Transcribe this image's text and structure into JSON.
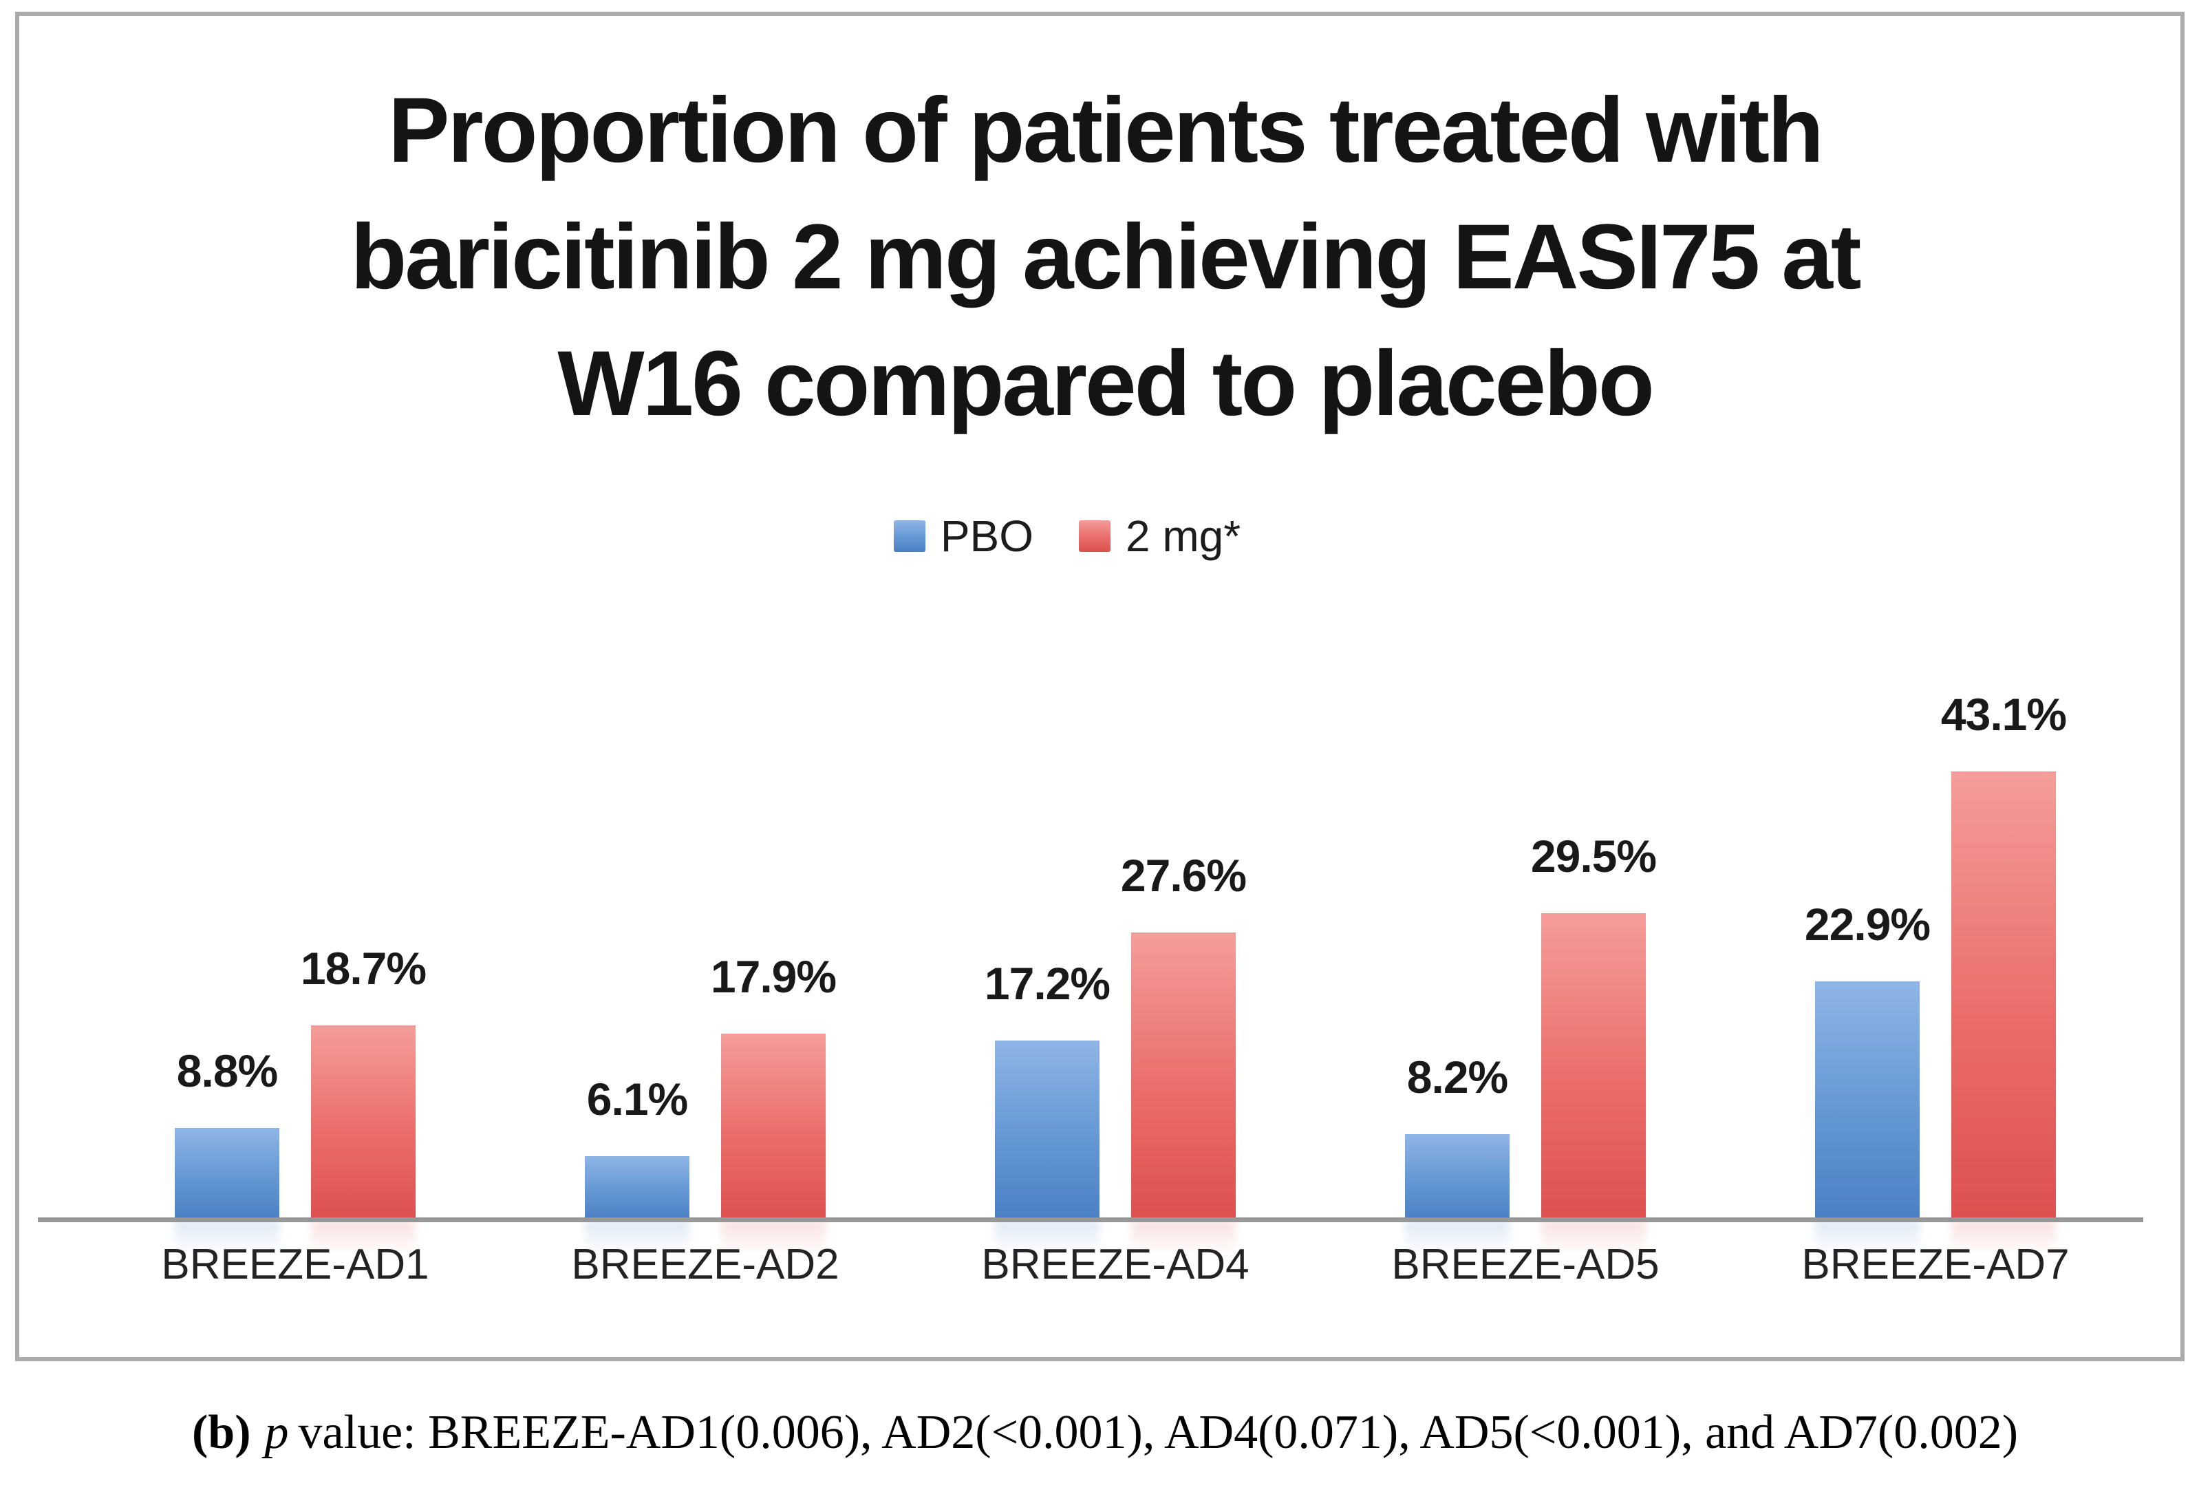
{
  "chart_data": {
    "type": "bar",
    "title": "Proportion of patients treated with baricitinib 2 mg achieving EASI75 at W16 compared to placebo",
    "title_lines": [
      "Proportion of patients treated with",
      "baricitinib 2 mg achieving EASI75 at",
      "W16 compared to placebo"
    ],
    "categories": [
      "BREEZE-AD1",
      "BREEZE-AD2",
      "BREEZE-AD4",
      "BREEZE-AD5",
      "BREEZE-AD7"
    ],
    "series": [
      {
        "name": "PBO",
        "values": [
          8.8,
          6.1,
          17.2,
          8.2,
          22.9
        ],
        "labels": [
          "8.8%",
          "6.1%",
          "17.2%",
          "8.2%",
          "22.9%"
        ],
        "color_top": "#8FB5E6",
        "color_mid": "#6497D4",
        "color_bottom": "#4B80C4"
      },
      {
        "name": "2 mg*",
        "values": [
          18.7,
          17.9,
          27.6,
          29.5,
          43.1
        ],
        "labels": [
          "18.7%",
          "17.9%",
          "27.6%",
          "29.5%",
          "43.1%"
        ],
        "color_top": "#F49D9A",
        "color_mid": "#EA6D6A",
        "color_bottom": "#DD514F"
      }
    ],
    "ylim": [
      0,
      45
    ],
    "grid": false,
    "legend_position": "top-center",
    "axis_line_color": "#979797",
    "panel_border_color": "#ababab"
  },
  "caption": {
    "marker": "(b)",
    "p_word": "p",
    "rest": "value: BREEZE-AD1(0.006), AD2(<0.001), AD4(0.071), AD5(<0.001), and AD7(0.002)"
  }
}
